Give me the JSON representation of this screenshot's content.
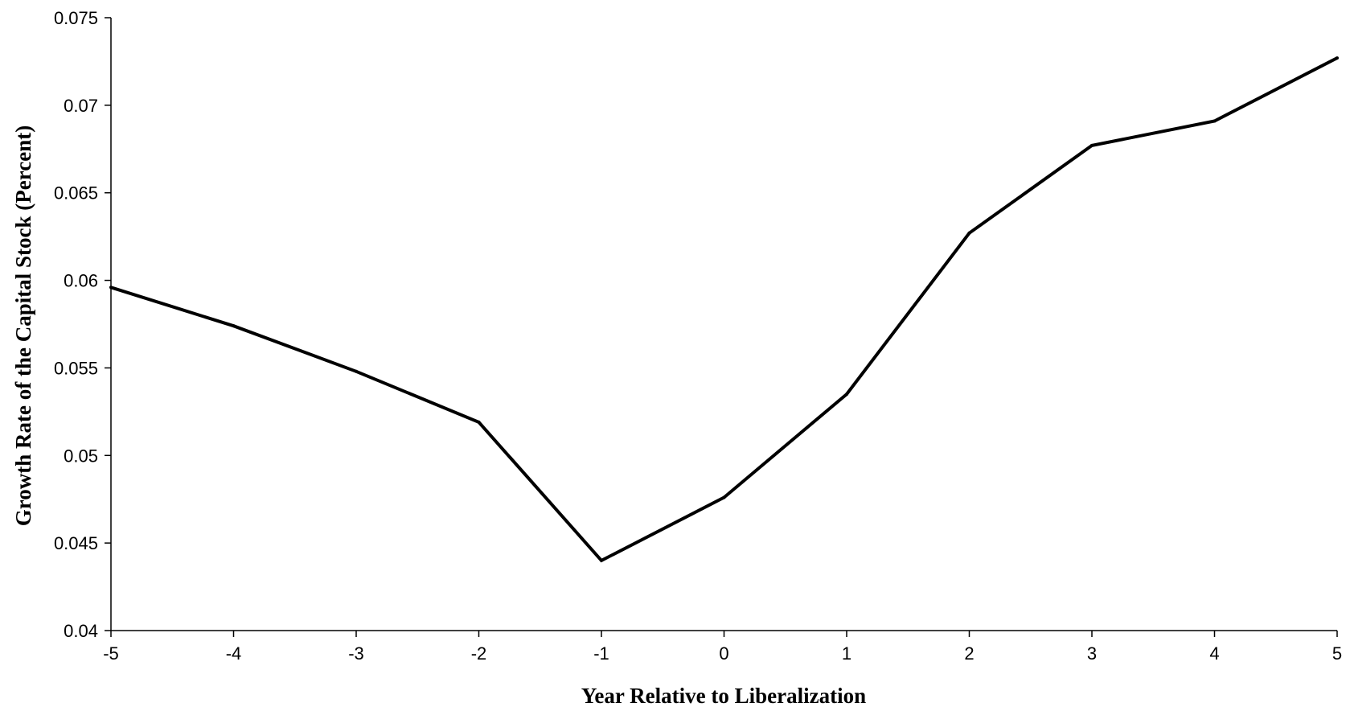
{
  "chart_data": {
    "type": "line",
    "title": "",
    "xlabel": "Year Relative to Liberalization",
    "ylabel": "Growth Rate of the Capital Stock (Percent)",
    "x": [
      -5,
      -4,
      -3,
      -2,
      -1,
      0,
      1,
      2,
      3,
      4,
      5
    ],
    "xtick_labels": [
      "-5",
      "-4",
      "-3",
      "-2",
      "-1",
      "0",
      "1",
      "2",
      "3",
      "4",
      "5"
    ],
    "ytick_labels": [
      "0.04",
      "0.045",
      "0.05",
      "0.055",
      "0.06",
      "0.065",
      "0.07",
      "0.075"
    ],
    "yticks": [
      0.04,
      0.045,
      0.05,
      0.055,
      0.06,
      0.065,
      0.07,
      0.075
    ],
    "xlim": [
      -5,
      5
    ],
    "ylim": [
      0.04,
      0.075
    ],
    "grid": false,
    "series": [
      {
        "values": [
          0.0596,
          0.0574,
          0.0548,
          0.0519,
          0.044,
          0.0476,
          0.0535,
          0.0627,
          0.0677,
          0.0691,
          0.0727
        ],
        "color": "#000000"
      }
    ]
  }
}
